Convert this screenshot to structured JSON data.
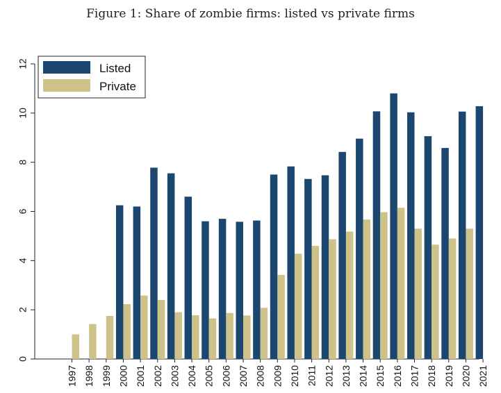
{
  "chart_data": {
    "type": "bar",
    "title": "Figure 1: Share of zombie firms: listed vs private firms",
    "xlabel": "",
    "ylabel": "",
    "ylim": [
      0,
      12
    ],
    "yticks": [
      0,
      2,
      4,
      6,
      8,
      10,
      12
    ],
    "categories": [
      "1997",
      "1998",
      "1999",
      "2000",
      "2001",
      "2002",
      "2003",
      "2004",
      "2005",
      "2006",
      "2007",
      "2008",
      "2009",
      "2010",
      "2011",
      "2012",
      "2013",
      "2014",
      "2015",
      "2016",
      "2017",
      "2018",
      "2019",
      "2020",
      "2021"
    ],
    "series": [
      {
        "name": "Listed",
        "color": "#1b466f",
        "values": [
          null,
          null,
          null,
          6.25,
          6.2,
          7.78,
          7.55,
          6.6,
          5.6,
          5.7,
          5.58,
          5.63,
          7.5,
          7.83,
          7.32,
          7.47,
          8.42,
          8.96,
          10.07,
          10.8,
          10.03,
          9.06,
          8.58,
          10.06,
          10.28
        ]
      },
      {
        "name": "Private",
        "color": "#cdc28a",
        "values": [
          1.0,
          1.42,
          1.75,
          2.23,
          2.58,
          2.4,
          1.9,
          1.78,
          1.65,
          1.87,
          1.77,
          2.08,
          3.42,
          4.28,
          4.6,
          4.87,
          5.18,
          5.67,
          5.97,
          6.15,
          5.3,
          4.65,
          4.9,
          5.3,
          null
        ]
      }
    ],
    "legend_position": "top-left",
    "grid": false
  }
}
